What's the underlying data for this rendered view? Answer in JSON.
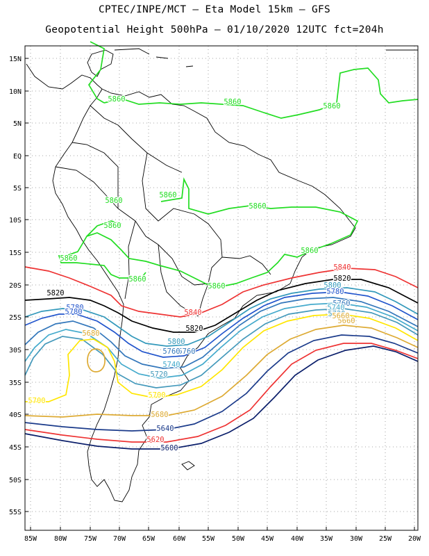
{
  "header": {
    "line1": "CPTEC/INPE/MCT –  Eta Model 15km – GFS",
    "line2": "Geopotential Height 500hPa – 01/10/2020 12UTC fct=204h"
  },
  "axes": {
    "lat_labels": [
      "15N",
      "10N",
      "5N",
      "EQ",
      "5S",
      "10S",
      "15S",
      "20S",
      "25S",
      "30S",
      "35S",
      "40S",
      "45S",
      "50S",
      "55S"
    ],
    "lon_labels": [
      "85W",
      "80W",
      "75W",
      "70W",
      "65W",
      "60W",
      "55W",
      "50W",
      "45W",
      "40W",
      "35W",
      "30W",
      "25W",
      "20W"
    ],
    "grid": true
  },
  "colors": {
    "c5860": "#22dd22",
    "c5840": "#ee3333",
    "c5820": "#000000",
    "c5800": "#3399bb",
    "c5780": "#2255cc",
    "c5760": "#3377bb",
    "c5740": "#44aacc",
    "c5720": "#4499bb",
    "c5700": "#ffe600",
    "c5680": "#ddaa33",
    "c5660": "#ddaa33",
    "c5640": "#1a3a8a",
    "c5620": "#ee3333",
    "c5600": "#0a1e6a",
    "coast": "#000000"
  },
  "contour_labels": [
    {
      "text": "5860",
      "color": "c5860"
    },
    {
      "text": "5860",
      "color": "c5860"
    },
    {
      "text": "5860",
      "color": "c5860"
    },
    {
      "text": "5860",
      "color": "c5860"
    },
    {
      "text": "5860",
      "color": "c5860"
    },
    {
      "text": "5860",
      "color": "c5860"
    },
    {
      "text": "5860",
      "color": "c5860"
    },
    {
      "text": "5860",
      "color": "c5860"
    },
    {
      "text": "5860",
      "color": "c5860"
    },
    {
      "text": "5860",
      "color": "c5860"
    },
    {
      "text": "5860",
      "color": "c5860"
    },
    {
      "text": "5840",
      "color": "c5840"
    },
    {
      "text": "5840",
      "color": "c5840"
    },
    {
      "text": "5820",
      "color": "c5820"
    },
    {
      "text": "5820",
      "color": "c5820"
    },
    {
      "text": "5820",
      "color": "c5820"
    },
    {
      "text": "5800",
      "color": "c5800"
    },
    {
      "text": "5800",
      "color": "c5800"
    },
    {
      "text": "5780",
      "color": "c5780"
    },
    {
      "text": "5780",
      "color": "c5780"
    },
    {
      "text": "5780",
      "color": "c5780"
    },
    {
      "text": "5760",
      "color": "c5760"
    },
    {
      "text": "5760",
      "color": "c5760"
    },
    {
      "text": "5740",
      "color": "c5740"
    },
    {
      "text": "5740",
      "color": "c5740"
    },
    {
      "text": "5720",
      "color": "c5720"
    },
    {
      "text": "5720",
      "color": "c5720"
    },
    {
      "text": "5700",
      "color": "c5700"
    },
    {
      "text": "5700",
      "color": "c5700"
    },
    {
      "text": "5660",
      "color": "c5660"
    },
    {
      "text": "5680",
      "color": "c5680"
    },
    {
      "text": "5660",
      "color": "c5660"
    },
    {
      "text": "5680",
      "color": "c5680"
    },
    {
      "text": "5640",
      "color": "c5640"
    },
    {
      "text": "5620",
      "color": "c5620"
    },
    {
      "text": "5600",
      "color": "c5600"
    },
    {
      "text": "5760",
      "color": "c5760"
    }
  ]
}
